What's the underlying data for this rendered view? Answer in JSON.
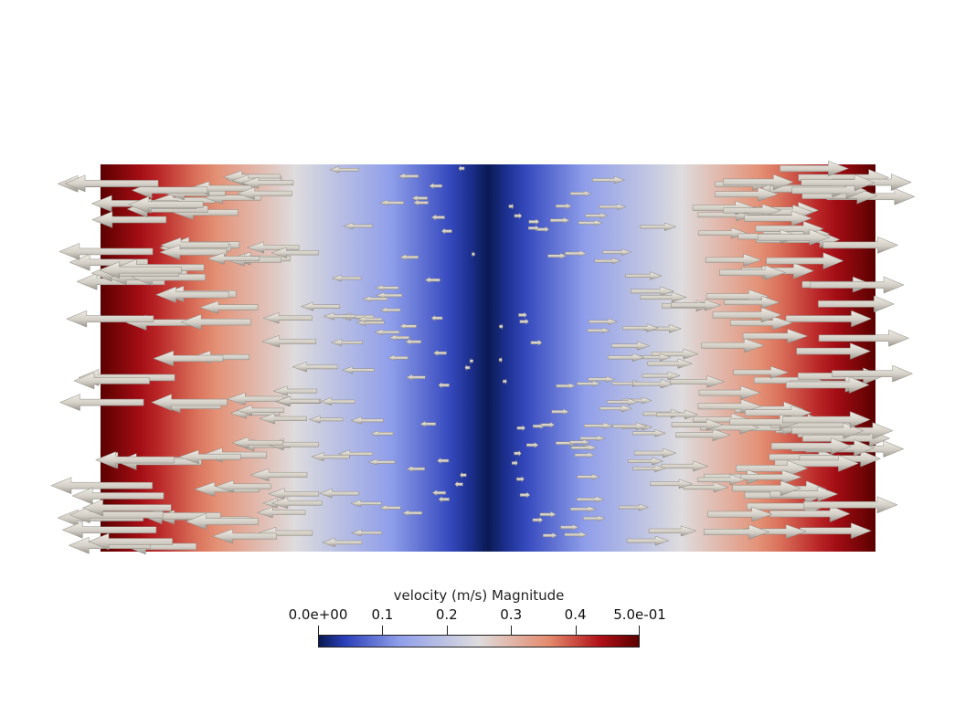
{
  "colorbar": {
    "title": "velocity (m/s) Magnitude",
    "min": 0.0,
    "max": 0.5,
    "ticks": [
      {
        "value": 0.0,
        "label": "0.0e+00"
      },
      {
        "value": 0.1,
        "label": "0.1"
      },
      {
        "value": 0.2,
        "label": "0.2"
      },
      {
        "value": 0.3,
        "label": "0.3"
      },
      {
        "value": 0.4,
        "label": "0.4"
      },
      {
        "value": 0.5,
        "label": "5.0e-01"
      }
    ],
    "colormap": "cool-to-warm",
    "colormap_stops": [
      {
        "t": 0.0,
        "color": "#0a1a52"
      },
      {
        "t": 0.08,
        "color": "#2a3fb8"
      },
      {
        "t": 0.25,
        "color": "#8f9eea"
      },
      {
        "t": 0.5,
        "color": "#dedcdd"
      },
      {
        "t": 0.72,
        "color": "#e48a6c"
      },
      {
        "t": 0.88,
        "color": "#b01018"
      },
      {
        "t": 1.0,
        "color": "#5a0000"
      }
    ]
  },
  "field": {
    "description_shown": "velocity magnitude field with glyph arrows",
    "profile": "|velocity| = 0.5 * |x| for x in [-1, 1]; flow leftward for x<0, rightward for x>0",
    "arrow_color": "#d6d2c8"
  }
}
